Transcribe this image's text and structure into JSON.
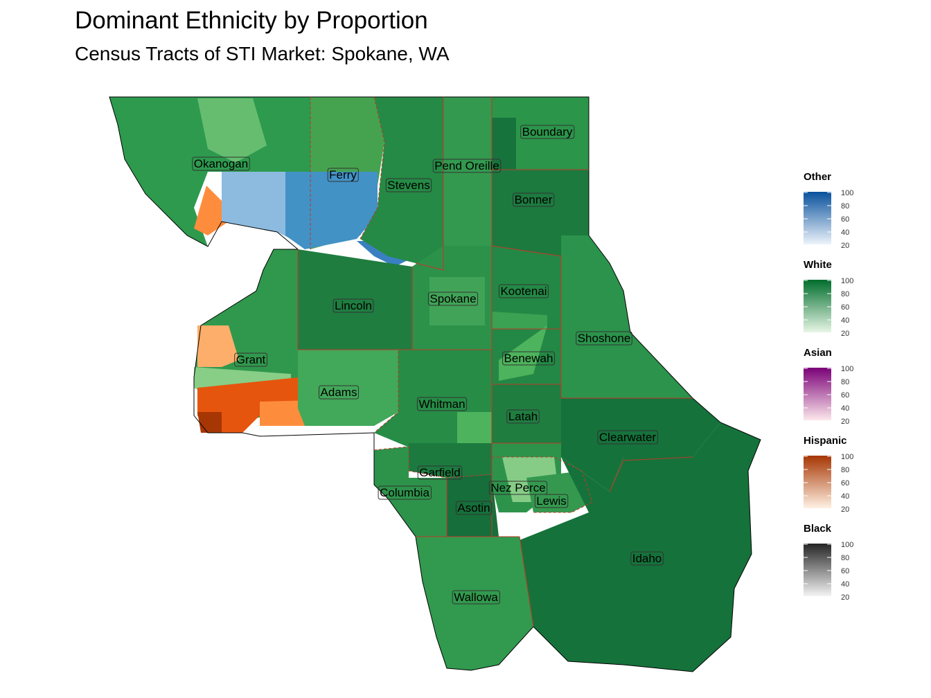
{
  "title": "Dominant Ethnicity by Proportion",
  "subtitle": "Census Tracts of STI Market: Spokane, WA",
  "counties": [
    {
      "name": "Okanogan"
    },
    {
      "name": "Ferry"
    },
    {
      "name": "Stevens"
    },
    {
      "name": "Pend Oreille"
    },
    {
      "name": "Boundary"
    },
    {
      "name": "Bonner"
    },
    {
      "name": "Lincoln"
    },
    {
      "name": "Spokane"
    },
    {
      "name": "Kootenai"
    },
    {
      "name": "Shoshone"
    },
    {
      "name": "Benewah"
    },
    {
      "name": "Grant"
    },
    {
      "name": "Adams"
    },
    {
      "name": "Whitman"
    },
    {
      "name": "Latah"
    },
    {
      "name": "Clearwater"
    },
    {
      "name": "Garfield"
    },
    {
      "name": "Columbia"
    },
    {
      "name": "Nez Perce"
    },
    {
      "name": "Lewis"
    },
    {
      "name": "Asotin"
    },
    {
      "name": "Idaho"
    },
    {
      "name": "Wallowa"
    }
  ],
  "legend": [
    {
      "title": "Other",
      "ticks": [
        "100",
        "80",
        "60",
        "40",
        "20"
      ],
      "color_low": "#eef4fb",
      "color_high": "#08519c"
    },
    {
      "title": "White",
      "ticks": [
        "100",
        "80",
        "60",
        "40",
        "20"
      ],
      "color_low": "#e8f6e6",
      "color_high": "#006d2c"
    },
    {
      "title": "Asian",
      "ticks": [
        "100",
        "80",
        "60",
        "40",
        "20"
      ],
      "color_low": "#fde8ec",
      "color_high": "#7a0177"
    },
    {
      "title": "Hispanic",
      "ticks": [
        "100",
        "80",
        "60",
        "40",
        "20"
      ],
      "color_low": "#fff1e3",
      "color_high": "#a63603"
    },
    {
      "title": "Black",
      "ticks": [
        "100",
        "80",
        "60",
        "40",
        "20"
      ],
      "color_low": "#f4f4f4",
      "color_high": "#252525"
    }
  ]
}
